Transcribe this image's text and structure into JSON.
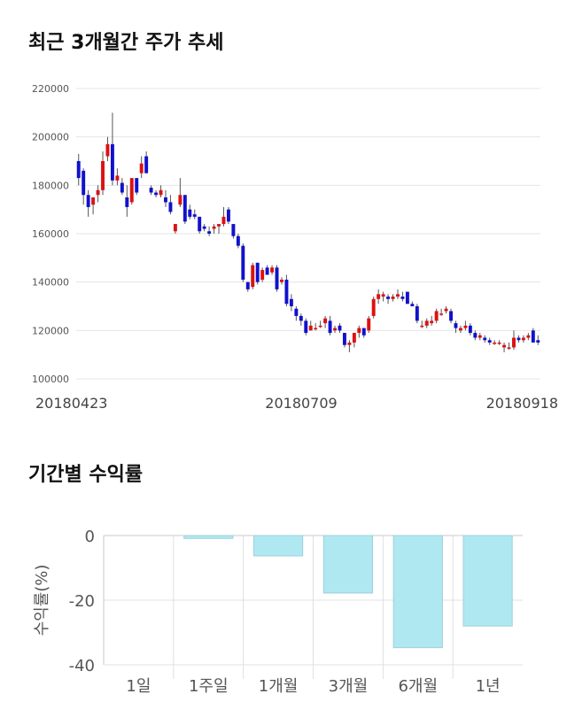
{
  "sections": {
    "price_title": "최근 3개월간 주가 추세",
    "return_title": "기간별 수익률"
  },
  "chart_data": [
    {
      "type": "candlestick",
      "title": "최근 3개월간 주가 추세",
      "ylim": [
        100000,
        220000
      ],
      "y_ticks": [
        "220000",
        "200000",
        "180000",
        "160000",
        "140000",
        "120000",
        "100000"
      ],
      "x_tick_labels": [
        "20180423",
        "20180709",
        "20180918"
      ],
      "grid": true,
      "colors": {
        "up": "#dd1111",
        "down": "#1111cc",
        "wick": "#555555",
        "grid": "#e5e5e5"
      },
      "ohlc": [
        [
          190000,
          193000,
          180000,
          183000
        ],
        [
          186000,
          187000,
          172000,
          176000
        ],
        [
          176000,
          178000,
          167000,
          171000
        ],
        [
          172000,
          175000,
          168000,
          175000
        ],
        [
          176000,
          180000,
          173000,
          178000
        ],
        [
          178000,
          194000,
          176000,
          190000
        ],
        [
          192000,
          200000,
          190000,
          197000
        ],
        [
          197000,
          210000,
          180000,
          182000
        ],
        [
          182000,
          187000,
          180000,
          184000
        ],
        [
          181000,
          183000,
          176000,
          177000
        ],
        [
          175000,
          180000,
          167000,
          171000
        ],
        [
          173000,
          183000,
          172000,
          183000
        ],
        [
          183000,
          183000,
          176000,
          177000
        ],
        [
          185000,
          192000,
          183000,
          189000
        ],
        [
          192000,
          194000,
          185000,
          185000
        ],
        [
          179000,
          180000,
          176000,
          177000
        ],
        [
          177000,
          178000,
          175000,
          176000
        ],
        [
          176000,
          180000,
          175000,
          178000
        ],
        [
          175000,
          178000,
          171000,
          173000
        ],
        [
          173000,
          176000,
          168000,
          169000
        ],
        [
          161000,
          164000,
          160000,
          164000
        ],
        [
          172000,
          183000,
          171000,
          176000
        ],
        [
          176000,
          176000,
          164000,
          165000
        ],
        [
          170000,
          172000,
          166000,
          167000
        ],
        [
          168000,
          170000,
          166000,
          167000
        ],
        [
          167000,
          167000,
          160000,
          161000
        ],
        [
          163000,
          164000,
          161000,
          162000
        ],
        [
          161000,
          163000,
          159000,
          160000
        ],
        [
          162000,
          164000,
          160000,
          163000
        ],
        [
          163000,
          164000,
          160000,
          164000
        ],
        [
          164000,
          171000,
          163000,
          167000
        ],
        [
          170000,
          171000,
          164000,
          165000
        ],
        [
          164000,
          164000,
          158000,
          159000
        ],
        [
          159000,
          160000,
          154000,
          155000
        ],
        [
          155000,
          156000,
          140000,
          141000
        ],
        [
          140000,
          140000,
          136000,
          137000
        ],
        [
          138000,
          148000,
          137000,
          147000
        ],
        [
          148000,
          148000,
          139000,
          140000
        ],
        [
          141000,
          146000,
          140000,
          145000
        ],
        [
          146000,
          147000,
          143000,
          143000
        ],
        [
          144000,
          147000,
          143000,
          146000
        ],
        [
          146000,
          147000,
          136000,
          137000
        ],
        [
          140000,
          142000,
          139000,
          141000
        ],
        [
          141000,
          143000,
          130000,
          131000
        ],
        [
          133000,
          135000,
          128000,
          130000
        ],
        [
          129000,
          130000,
          124000,
          126000
        ],
        [
          126000,
          127000,
          122000,
          124000
        ],
        [
          124000,
          125000,
          118000,
          119000
        ],
        [
          120000,
          124000,
          120000,
          122000
        ],
        [
          121000,
          123000,
          120000,
          121000
        ],
        [
          122000,
          124000,
          121000,
          122000
        ],
        [
          123000,
          126000,
          121000,
          125000
        ],
        [
          124000,
          126000,
          118000,
          119000
        ],
        [
          120000,
          122000,
          119000,
          121000
        ],
        [
          122000,
          123000,
          119000,
          120000
        ],
        [
          119000,
          119000,
          113000,
          114000
        ],
        [
          114000,
          116000,
          111000,
          115000
        ],
        [
          115000,
          119000,
          113000,
          119000
        ],
        [
          119000,
          122000,
          117000,
          121000
        ],
        [
          121000,
          121000,
          117000,
          118000
        ],
        [
          120000,
          126000,
          119000,
          125000
        ],
        [
          126000,
          134000,
          125000,
          133000
        ],
        [
          133000,
          137000,
          131000,
          135000
        ],
        [
          134000,
          136000,
          132000,
          135000
        ],
        [
          134000,
          135000,
          131000,
          133000
        ],
        [
          133000,
          135000,
          132000,
          134000
        ],
        [
          134000,
          137000,
          133000,
          135000
        ],
        [
          134000,
          136000,
          132000,
          133000
        ],
        [
          136000,
          136000,
          131000,
          131000
        ],
        [
          131000,
          132000,
          130000,
          130000
        ],
        [
          130000,
          131000,
          123000,
          124000
        ],
        [
          122000,
          124000,
          121000,
          122000
        ],
        [
          122000,
          125000,
          121000,
          124000
        ],
        [
          123000,
          126000,
          122000,
          124000
        ],
        [
          124000,
          129000,
          123000,
          128000
        ],
        [
          127000,
          129000,
          126000,
          127000
        ],
        [
          128000,
          130000,
          127000,
          129000
        ],
        [
          128000,
          129000,
          123000,
          124000
        ],
        [
          123000,
          124000,
          119000,
          121000
        ],
        [
          120000,
          122000,
          119000,
          121000
        ],
        [
          121000,
          124000,
          120000,
          122000
        ],
        [
          122000,
          123000,
          118000,
          119000
        ],
        [
          119000,
          120000,
          116000,
          117000
        ],
        [
          117000,
          119000,
          116000,
          118000
        ],
        [
          117000,
          118000,
          115000,
          116000
        ],
        [
          116000,
          117000,
          114000,
          115000
        ],
        [
          115000,
          116000,
          114000,
          115000
        ],
        [
          115000,
          116000,
          114000,
          115000
        ],
        [
          113000,
          115000,
          111000,
          114000
        ],
        [
          113000,
          115000,
          112000,
          113000
        ],
        [
          113000,
          120000,
          112000,
          117000
        ],
        [
          117000,
          118000,
          115000,
          116000
        ],
        [
          116000,
          118000,
          115000,
          117000
        ],
        [
          117000,
          119000,
          116000,
          118000
        ],
        [
          120000,
          121000,
          115000,
          115000
        ],
        [
          116000,
          118000,
          114000,
          115000
        ]
      ]
    },
    {
      "type": "bar",
      "title": "기간별 수익률",
      "ylabel": "수익률(%)",
      "categories": [
        "1일",
        "1주일",
        "1개월",
        "3개월",
        "6개월",
        "1년"
      ],
      "values": [
        0,
        -0.9,
        -6.3,
        -17.8,
        -34.7,
        -28.0
      ],
      "ylim": [
        -40,
        0
      ],
      "y_ticks": [
        "0",
        "-20",
        "-40"
      ],
      "grid": true,
      "colors": {
        "fill": "#b0e8f2",
        "stroke": "#9fcfda",
        "grid": "#e0e0e0",
        "axis": "#c8c8c8"
      }
    }
  ]
}
